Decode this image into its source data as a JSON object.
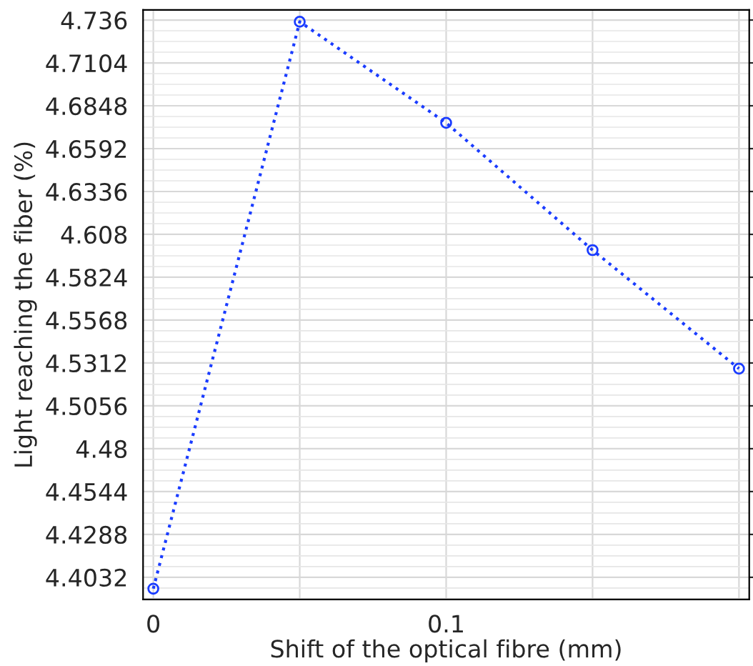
{
  "chart_data": {
    "type": "line",
    "xlabel": "Shift of the optical fibre (mm)",
    "ylabel": "Light reaching the fiber (%)",
    "x": [
      0,
      0.05,
      0.1,
      0.15,
      0.2
    ],
    "series": [
      {
        "color": "#1a3cff",
        "values": [
          4.3964,
          4.735,
          4.6746,
          4.5986,
          4.5278
        ]
      }
    ],
    "xlim": [
      -0.0035,
      0.2035
    ],
    "ylim": [
      4.39,
      4.742
    ],
    "xticks": [
      0,
      {
        "value": 0.05,
        "label": null
      },
      0.1,
      {
        "value": 0.15,
        "label": null
      },
      {
        "value": 0.2,
        "label": null
      }
    ],
    "yticks": [
      4.4032,
      4.4288,
      4.4544,
      4.48,
      4.5056,
      4.5312,
      4.5568,
      4.5824,
      4.608,
      4.6336,
      4.6592,
      4.6848,
      4.7104,
      4.736
    ],
    "grid": true,
    "marker": "circle",
    "line_style": "dotted"
  }
}
